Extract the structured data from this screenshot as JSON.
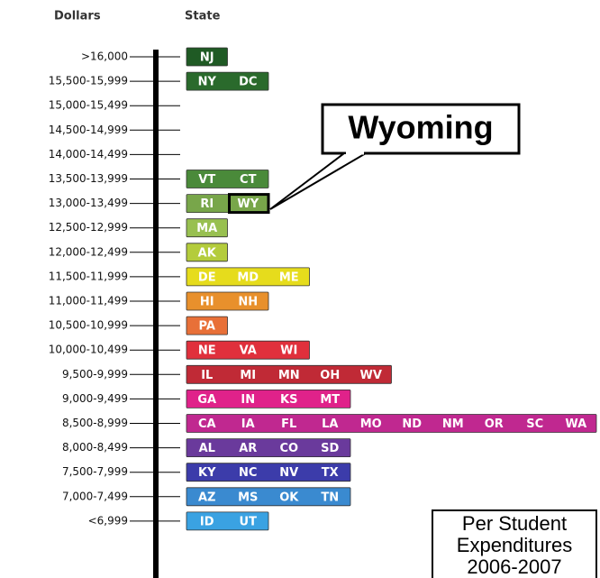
{
  "header": {
    "dollars": "Dollars",
    "state": "State"
  },
  "rows": [
    {
      "range": ">16,000",
      "states": [
        "NJ"
      ],
      "color": "#1f5a24"
    },
    {
      "range": "15,500-15,999",
      "states": [
        "NY",
        "DC"
      ],
      "color": "#2a6a2c"
    },
    {
      "range": "15,000-15,499",
      "states": [],
      "color": "#2a6a2c"
    },
    {
      "range": "14,500-14,999",
      "states": [],
      "color": "#2a6a2c"
    },
    {
      "range": "14,000-14,499",
      "states": [],
      "color": "#2a6a2c"
    },
    {
      "range": "13,500-13,999",
      "states": [
        "VT",
        "CT"
      ],
      "color": "#4a8a3a"
    },
    {
      "range": "13,000-13,499",
      "states": [
        "RI",
        "WY"
      ],
      "color": "#78a64a"
    },
    {
      "range": "12,500-12,999",
      "states": [
        "MA"
      ],
      "color": "#98c050"
    },
    {
      "range": "12,000-12,499",
      "states": [
        "AK"
      ],
      "color": "#b4cc3c"
    },
    {
      "range": "11,500-11,999",
      "states": [
        "DE",
        "MD",
        "ME"
      ],
      "color": "#e6dc1c"
    },
    {
      "range": "11,000-11,499",
      "states": [
        "HI",
        "NH"
      ],
      "color": "#e8902c"
    },
    {
      "range": "10,500-10,999",
      "states": [
        "PA"
      ],
      "color": "#e87038"
    },
    {
      "range": "10,000-10,499",
      "states": [
        "NE",
        "VA",
        "WI"
      ],
      "color": "#e0303c"
    },
    {
      "range": "9,500-9,999",
      "states": [
        "IL",
        "MI",
        "MN",
        "OH",
        "WV"
      ],
      "color": "#c02a36"
    },
    {
      "range": "9,000-9,499",
      "states": [
        "GA",
        "IN",
        "KS",
        "MT"
      ],
      "color": "#e0228a"
    },
    {
      "range": "8,500-8,999",
      "states": [
        "CA",
        "IA",
        "FL",
        "LA",
        "MO",
        "ND",
        "NM",
        "OR",
        "SC",
        "WA"
      ],
      "color": "#c02890"
    },
    {
      "range": "8,000-8,499",
      "states": [
        "AL",
        "AR",
        "CO",
        "SD"
      ],
      "color": "#6a3a9c"
    },
    {
      "range": "7,500-7,999",
      "states": [
        "KY",
        "NC",
        "NV",
        "TX"
      ],
      "color": "#3c3caa"
    },
    {
      "range": "7,000-7,499",
      "states": [
        "AZ",
        "MS",
        "OK",
        "TN"
      ],
      "color": "#3a8ad0"
    },
    {
      "range": "<6,999",
      "states": [
        "ID",
        "UT"
      ],
      "color": "#3aa2e2"
    }
  ],
  "callout": "Wyoming",
  "note": [
    "Per Student",
    "Expenditures",
    "2006-2007"
  ]
}
